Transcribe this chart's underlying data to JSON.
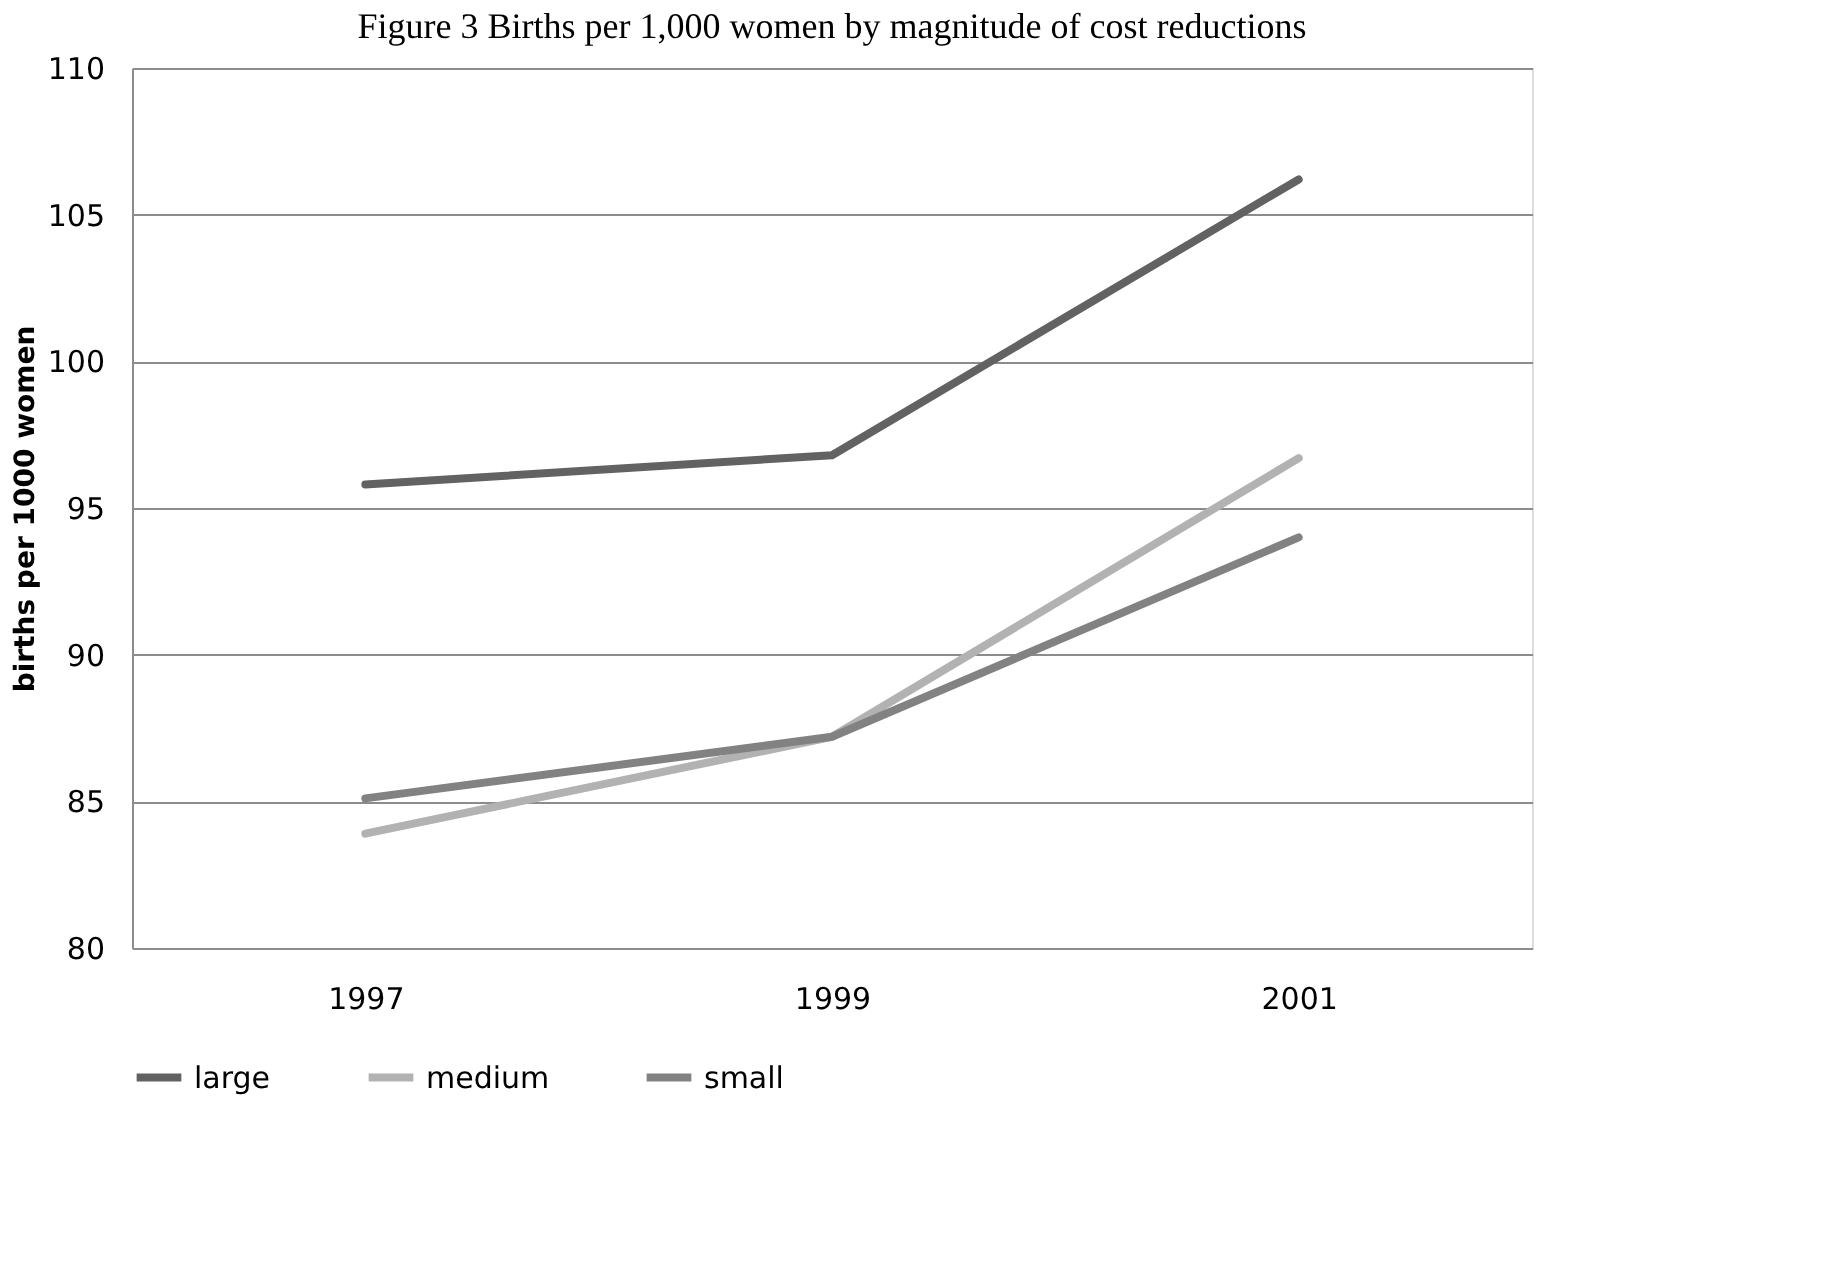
{
  "chart_data": {
    "type": "line",
    "title": "Figure 3 Births per 1,000 women by magnitude of cost reductions",
    "ylabel": "births per 1000 women",
    "categories": [
      "1997",
      "1999",
      "2001"
    ],
    "series": [
      {
        "name": "large",
        "color": "#626262",
        "values": [
          95.8,
          96.8,
          106.2
        ]
      },
      {
        "name": "medium",
        "color": "#b2b2b2",
        "values": [
          83.9,
          87.2,
          96.7
        ]
      },
      {
        "name": "small",
        "color": "#828282",
        "values": [
          85.1,
          87.2,
          94.0
        ]
      }
    ],
    "ylim": [
      80,
      110
    ],
    "yticks": [
      80,
      85,
      90,
      95,
      100,
      105,
      110
    ],
    "grid": "y",
    "legend": "bottom",
    "marker": "none",
    "line_style": "solid"
  }
}
